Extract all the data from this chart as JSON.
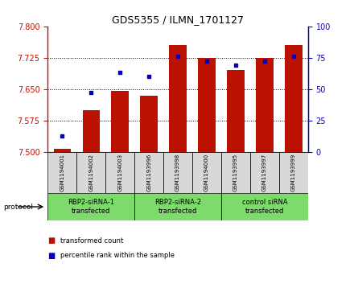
{
  "title": "GDS5355 / ILMN_1701127",
  "samples": [
    "GSM1194001",
    "GSM1194002",
    "GSM1194003",
    "GSM1193996",
    "GSM1193998",
    "GSM1194000",
    "GSM1193995",
    "GSM1193997",
    "GSM1193999"
  ],
  "transformed_count": [
    7.508,
    7.6,
    7.645,
    7.635,
    7.755,
    7.725,
    7.695,
    7.725,
    7.755
  ],
  "percentile_rank": [
    13,
    47,
    63,
    60,
    76,
    72,
    69,
    72,
    76
  ],
  "groups": [
    {
      "label": "RBP2-siRNA-1\ntransfected",
      "start": 0,
      "end": 3,
      "color": "#7CDB6B"
    },
    {
      "label": "RBP2-siRNA-2\ntransfected",
      "start": 3,
      "end": 6,
      "color": "#7CDB6B"
    },
    {
      "label": "control siRNA\ntransfected",
      "start": 6,
      "end": 9,
      "color": "#7CDB6B"
    }
  ],
  "ylim_left": [
    7.5,
    7.8
  ],
  "ylim_right": [
    0,
    100
  ],
  "yticks_left": [
    7.5,
    7.575,
    7.65,
    7.725,
    7.8
  ],
  "yticks_right": [
    0,
    25,
    50,
    75,
    100
  ],
  "bar_color": "#BB1100",
  "dot_color": "#0000CC",
  "bg_color": "#FFFFFF",
  "sample_bg_color": "#D8D8D8",
  "title_fontsize": 9,
  "tick_fontsize": 7,
  "sample_fontsize": 5,
  "group_fontsize": 6,
  "legend_fontsize": 6,
  "protocol_label": "protocol"
}
